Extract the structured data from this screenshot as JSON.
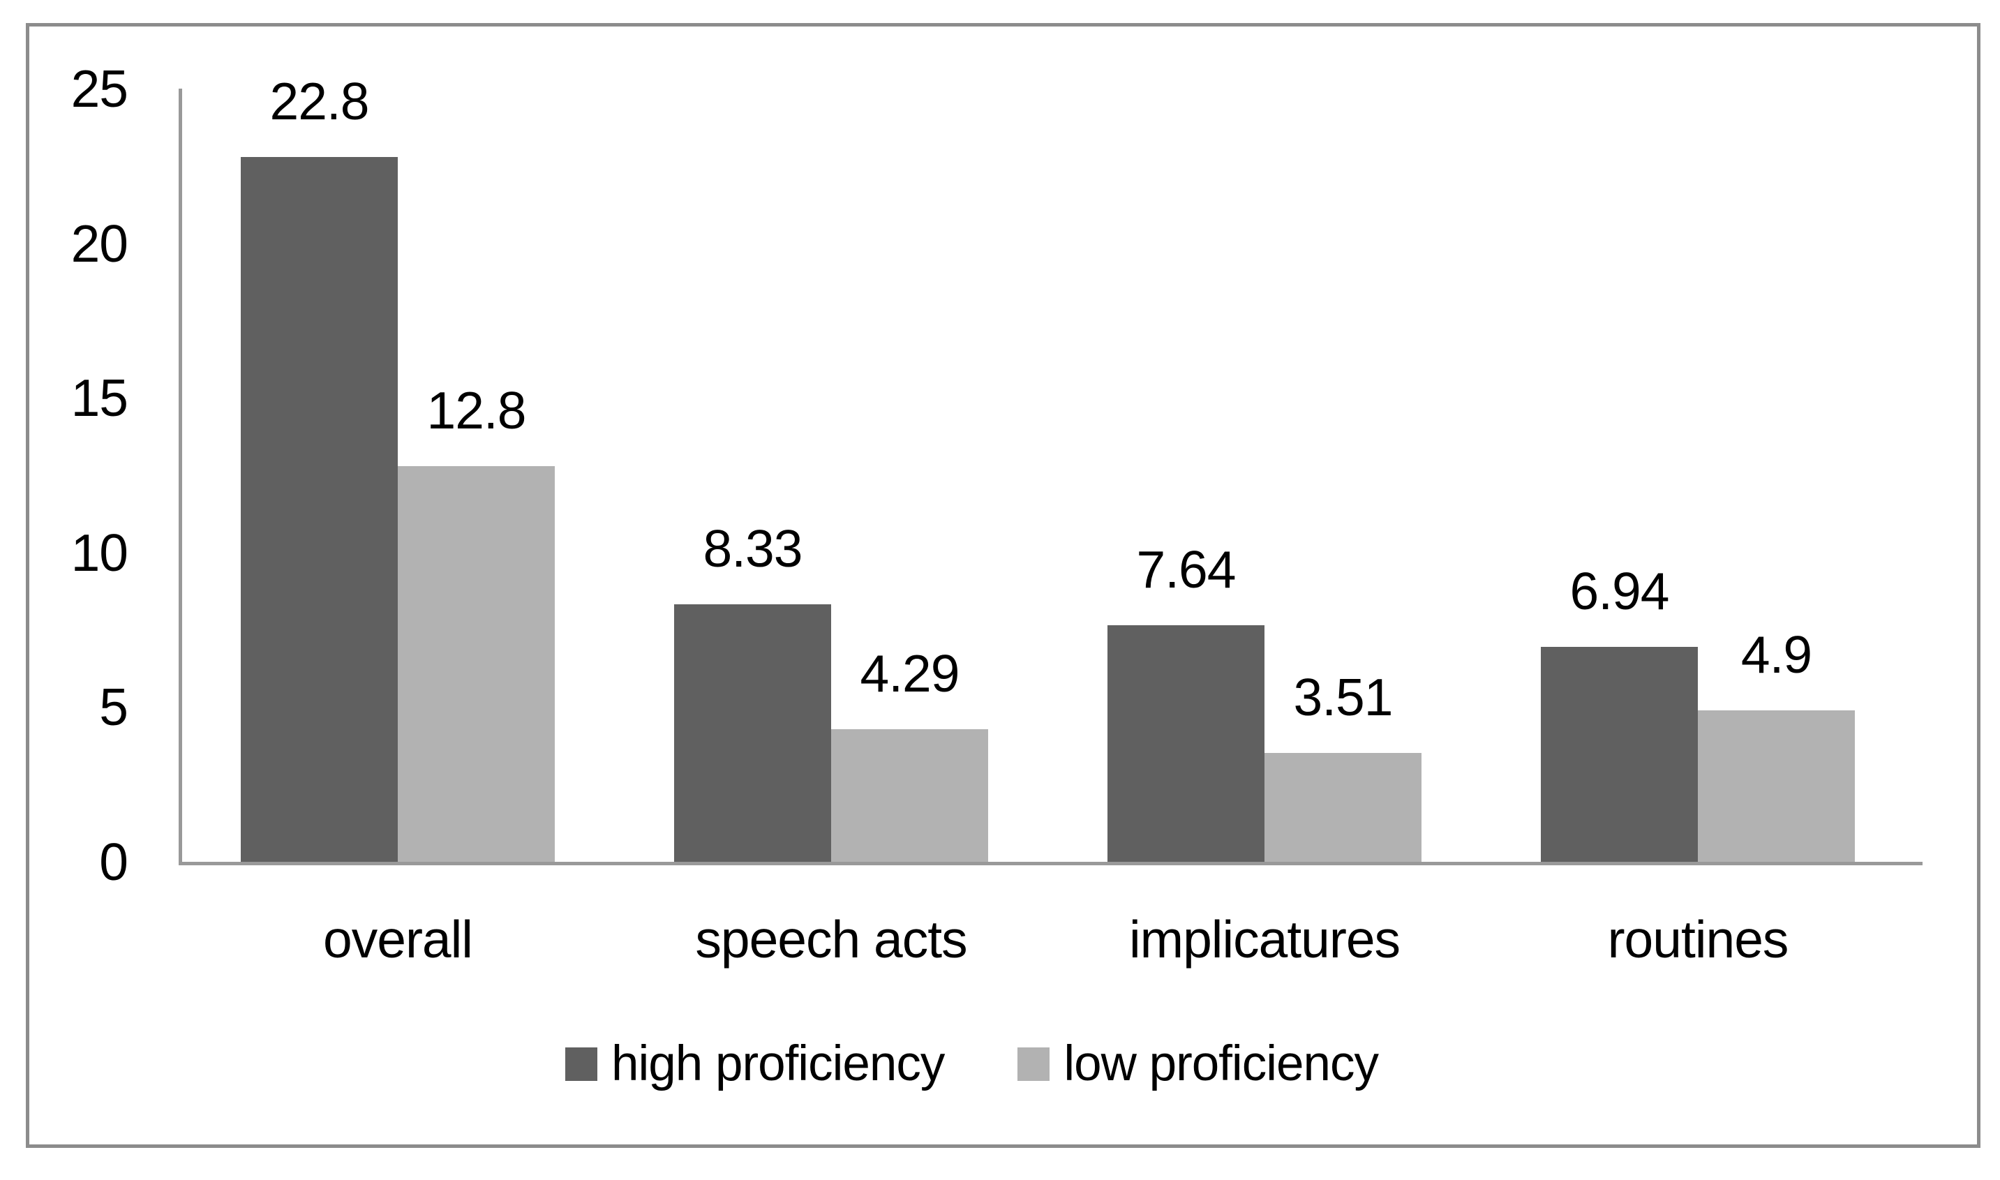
{
  "chart_data": {
    "type": "bar",
    "title": "",
    "xlabel": "",
    "ylabel": "",
    "categories": [
      "overall",
      "speech acts",
      "implicatures",
      "routines"
    ],
    "series": [
      {
        "name": "high proficiency",
        "color": "#606060",
        "values": [
          22.8,
          8.33,
          7.64,
          6.94
        ],
        "value_labels": [
          "22.8",
          "8.33",
          "7.64",
          "6.94"
        ]
      },
      {
        "name": "low proficiency",
        "color": "#b2b2b2",
        "values": [
          12.8,
          4.29,
          3.51,
          4.9
        ],
        "value_labels": [
          "12.8",
          "4.29",
          "3.51",
          "4.9"
        ]
      }
    ],
    "y_axis": {
      "min": 0,
      "max": 25,
      "ticks": [
        0,
        5,
        10,
        15,
        20,
        25
      ],
      "tick_labels": [
        "0",
        "5",
        "10",
        "15",
        "20",
        "25"
      ]
    },
    "grid": false,
    "data_labels_shown": true,
    "legend": {
      "position": "bottom",
      "entries": [
        "high proficiency",
        "low proficiency"
      ]
    },
    "style": {
      "axis_color": "#999999",
      "frame_border_color": "#8c8c8c",
      "text_color": "#000000",
      "background_color": "#ffffff"
    }
  }
}
